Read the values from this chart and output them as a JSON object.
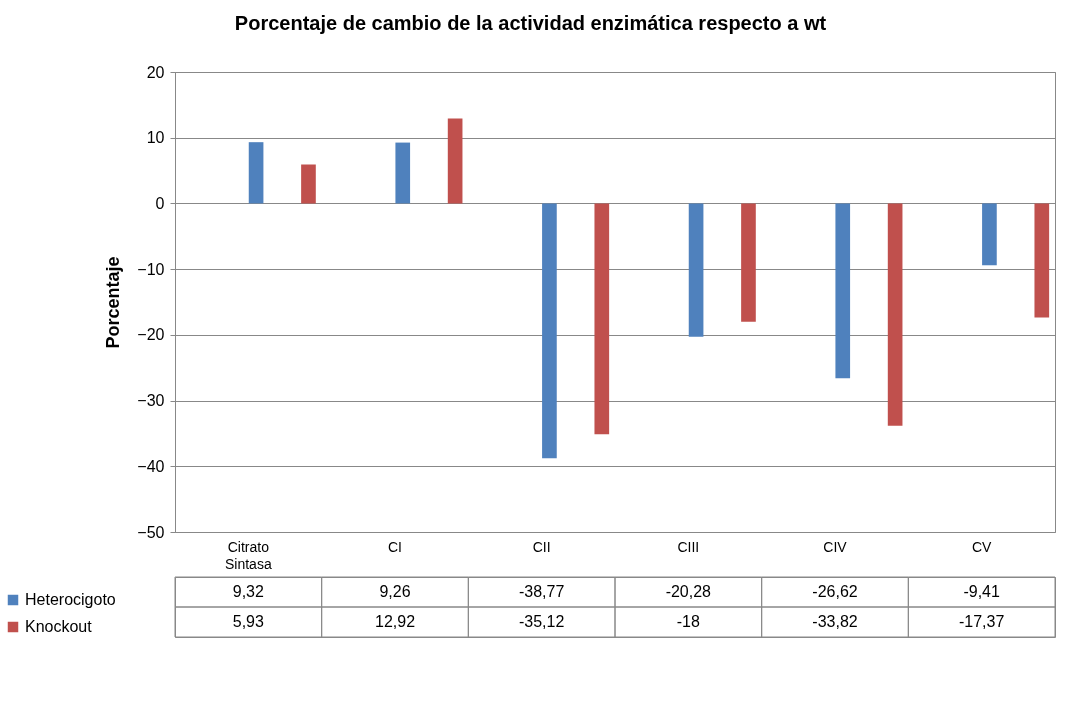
{
  "chart_data": {
    "type": "bar",
    "title": "Porcentaje de cambio de la actividad enzimática respecto a wt",
    "ylabel": "Porcentaje",
    "categories": [
      "Citrato Sintasa",
      "CI",
      "CII",
      "CIII",
      "CIV",
      "CV"
    ],
    "series": [
      {
        "name": "Heterocigoto",
        "color": "#4f81bd",
        "values": [
          9.32,
          9.26,
          -38.77,
          -20.28,
          -26.62,
          -9.41
        ],
        "value_labels": [
          "9,32",
          "9,26",
          "-38,77",
          "-20,28",
          "-26,62",
          "-9,41"
        ]
      },
      {
        "name": "Knockout",
        "color": "#c0504d",
        "values": [
          5.93,
          12.92,
          -35.12,
          -18,
          -33.82,
          -17.37
        ],
        "value_labels": [
          "5,93",
          "12,92",
          "-35,12",
          "-18",
          "-33,82",
          "-17,37"
        ]
      }
    ],
    "ylim": [
      -50,
      20
    ],
    "yticks": [
      -50,
      -40,
      -30,
      -20,
      -10,
      0,
      10,
      20
    ],
    "grid": "y",
    "legend": "bottom left"
  }
}
